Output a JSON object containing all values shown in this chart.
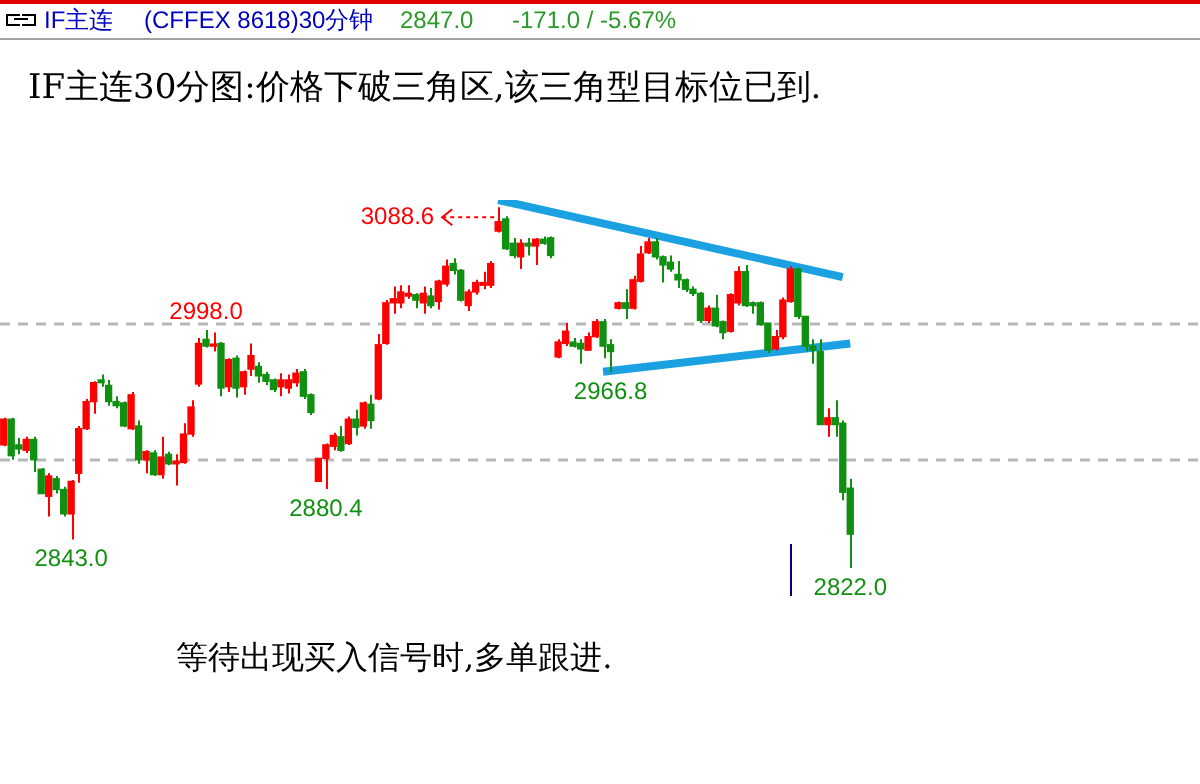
{
  "chart_data": {
    "type": "candlestick",
    "title": "IF主连30分图:价格下破三角区,该三角型目标位已到.",
    "annotations": [
      "IF主连",
      "(CFFEX 8618)30分钟",
      "2847.0",
      "-171.0 / -5.67%",
      "3088.6",
      "等待出现买入信号时,多单跟进.",
      {
        "text": "2998.0",
        "y": 2998.0
      },
      {
        "text": "2843.0",
        "y": 2843.0
      },
      {
        "text": "2880.4",
        "y": 2880.4
      },
      {
        "text": "2966.8",
        "y": 2966.8
      },
      {
        "text": "2822.0",
        "y": 2822.0
      }
    ],
    "categories": [
      null,
      null,
      null,
      null,
      null,
      null,
      null,
      null,
      null,
      null,
      null,
      null,
      null,
      null,
      null,
      null,
      null,
      null,
      null,
      null,
      null,
      null,
      null,
      null,
      null,
      null,
      null,
      null,
      null,
      null,
      null,
      null,
      null,
      null,
      null,
      null,
      null,
      null,
      null,
      null,
      null,
      null,
      null,
      null,
      null,
      null,
      null,
      null,
      null,
      null,
      null,
      null,
      null,
      null,
      null,
      null,
      null,
      null,
      null,
      null,
      null,
      null,
      null,
      null,
      null,
      null,
      null,
      null,
      null,
      null,
      null,
      null,
      null,
      null,
      null,
      null,
      null,
      null,
      null,
      null,
      null,
      null,
      null,
      null,
      null,
      null,
      null,
      null,
      null,
      null,
      null,
      null,
      null,
      null,
      null,
      null,
      null,
      null,
      null,
      null,
      null,
      null,
      null,
      null,
      null,
      null,
      null,
      null,
      null,
      null,
      null,
      null,
      null,
      null
    ],
    "ohlc": [
      [
        2913,
        2933,
        2912,
        2932
      ],
      [
        2932,
        2933,
        2902,
        2905
      ],
      [
        2913,
        2918,
        2906,
        2910
      ],
      [
        2909,
        2919,
        2907,
        2917
      ],
      [
        2917,
        2919,
        2893,
        2902
      ],
      [
        2895,
        2896,
        2877,
        2877
      ],
      [
        2875,
        2892,
        2860,
        2890
      ],
      [
        2888,
        2890,
        2877,
        2880
      ],
      [
        2880,
        2882,
        2860,
        2862
      ],
      [
        2862,
        2887,
        2843.0,
        2886
      ],
      [
        2892,
        2927,
        2885,
        2925
      ],
      [
        2925,
        2947,
        2924,
        2945
      ],
      [
        2945,
        2960,
        2936,
        2959
      ],
      [
        2961,
        2965,
        2956,
        2959
      ],
      [
        2957,
        2961,
        2942,
        2945
      ],
      [
        2945,
        2949,
        2940,
        2942
      ],
      [
        2944,
        2945,
        2926,
        2927
      ],
      [
        2925,
        2952,
        2924,
        2950
      ],
      [
        2927,
        2931,
        2899,
        2902
      ],
      [
        2902,
        2909,
        2892,
        2908
      ],
      [
        2907,
        2909,
        2890,
        2891
      ],
      [
        2891,
        2919,
        2888,
        2904
      ],
      [
        2906,
        2908,
        2898,
        2899
      ],
      [
        2899,
        2906,
        2883,
        2901
      ],
      [
        2900,
        2929,
        2899,
        2921
      ],
      [
        2921,
        2946,
        2919,
        2941
      ],
      [
        2958,
        2992,
        2956,
        2988
      ],
      [
        2991,
        2998.0,
        2985,
        2986
      ],
      [
        2986,
        2996,
        2982,
        2986
      ],
      [
        2988,
        2989,
        2949,
        2955
      ],
      [
        2956,
        2977,
        2952,
        2976
      ],
      [
        2977,
        2979,
        2948,
        2955
      ],
      [
        2956,
        2968,
        2950,
        2967
      ],
      [
        2969,
        2988,
        2964,
        2979
      ],
      [
        2971,
        2974,
        2959,
        2964
      ],
      [
        2965,
        2967,
        2957,
        2960
      ],
      [
        2961,
        2962,
        2952,
        2954
      ],
      [
        2956,
        2966,
        2949,
        2961
      ],
      [
        2955,
        2965,
        2951,
        2961
      ],
      [
        2959,
        2969,
        2956,
        2966
      ],
      [
        2967,
        2969,
        2947,
        2949
      ],
      [
        2950,
        2951,
        2935,
        2937
      ],
      [
        2886,
        2903,
        2886,
        2903
      ],
      [
        2903,
        2914,
        2880.4,
        2913
      ],
      [
        2912,
        2922,
        2909,
        2920
      ],
      [
        2919,
        2927,
        2908,
        2909
      ],
      [
        2914,
        2934,
        2913,
        2932
      ],
      [
        2932,
        2939,
        2920,
        2926
      ],
      [
        2927,
        2945,
        2925,
        2944
      ],
      [
        2943,
        2950,
        2925,
        2931
      ],
      [
        2947,
        2995,
        2946,
        2987
      ],
      [
        2988,
        3020,
        2987,
        3018
      ],
      [
        3018,
        3030,
        3010,
        3021
      ],
      [
        3018,
        3031,
        3014,
        3026
      ],
      [
        3023,
        3031,
        3021,
        3025
      ],
      [
        3024,
        3025,
        3014,
        3020
      ],
      [
        3018,
        3030,
        3010,
        3025
      ],
      [
        3023,
        3029,
        3014,
        3016
      ],
      [
        3019,
        3035,
        3013,
        3034
      ],
      [
        3032,
        3050,
        3030,
        3045
      ],
      [
        3047,
        3051,
        3039,
        3042
      ],
      [
        3042,
        3043,
        3019,
        3020
      ],
      [
        3016,
        3028,
        3012,
        3026
      ],
      [
        3026,
        3035,
        3024,
        3033
      ],
      [
        3031,
        3041,
        3028,
        3033
      ],
      [
        3031,
        3049,
        3029,
        3047
      ],
      [
        3071,
        3088.6,
        3070,
        3078
      ],
      [
        3080,
        3082,
        3057,
        3058
      ],
      [
        3062,
        3066,
        3051,
        3053
      ],
      [
        3052,
        3065,
        3043,
        3062
      ],
      [
        3062,
        3066,
        3053,
        3060
      ],
      [
        3060,
        3066,
        3046,
        3065
      ],
      [
        3065,
        3067,
        3061,
        3062
      ],
      [
        3066,
        3067,
        3051,
        3053
      ],
      [
        2978,
        2991,
        2977,
        2989
      ],
      [
        2988,
        3003,
        2986,
        2997
      ],
      [
        2989,
        2992,
        2985,
        2986
      ],
      [
        2988,
        2991,
        2973,
        2984
      ],
      [
        2983,
        2996,
        2983,
        2993
      ],
      [
        2993,
        3006,
        2992,
        3004
      ],
      [
        3004,
        3006,
        2977,
        2986
      ],
      [
        2987,
        2991,
        2966.8,
        2982
      ],
      [
        3014,
        3019,
        3013,
        3018
      ],
      [
        3018,
        3028,
        3006,
        3014
      ],
      [
        3014,
        3038,
        3013,
        3035
      ],
      [
        3034,
        3060,
        3033,
        3054
      ],
      [
        3055,
        3066,
        3054,
        3063
      ],
      [
        3063,
        3066,
        3050,
        3052
      ],
      [
        3052,
        3053,
        3033,
        3046
      ],
      [
        3048,
        3053,
        3041,
        3043
      ],
      [
        3039,
        3049,
        3029,
        3035
      ],
      [
        3035,
        3036,
        3026,
        3028
      ],
      [
        3028,
        3030,
        3023,
        3025
      ],
      [
        3025,
        3026,
        3003,
        3005
      ],
      [
        3005,
        3016,
        3003,
        3014
      ],
      [
        3014,
        3024,
        3000,
        3001
      ],
      [
        3004,
        3005,
        2991,
        2996
      ],
      [
        2997,
        3025,
        2996,
        3024
      ],
      [
        3018,
        3045,
        3016,
        3041
      ],
      [
        3041,
        3046,
        3015,
        3016
      ],
      [
        3018,
        3019,
        3010,
        3016
      ],
      [
        3018,
        3019,
        3001,
        3002
      ],
      [
        3003,
        3003,
        2981,
        2983
      ],
      [
        2984,
        2998,
        2983,
        2993
      ],
      [
        2993,
        3022,
        2991,
        3020
      ],
      [
        3019,
        3045,
        3018,
        3043
      ],
      [
        3043,
        3044,
        3006,
        3008
      ],
      [
        3008,
        3008,
        2982,
        2986
      ],
      [
        2986,
        2991,
        2973,
        2983
      ],
      [
        2982,
        2991,
        2928,
        2928
      ],
      [
        2928,
        2940,
        2919,
        2933
      ],
      [
        2933,
        2946,
        2919,
        2928
      ],
      [
        2929,
        2931,
        2872,
        2878
      ],
      [
        2881,
        2888,
        2822.0,
        2847
      ]
    ],
    "series": [
      {
        "type": "line",
        "color": "#1ba1e2",
        "values": [
          null,
          null,
          null,
          null,
          null,
          null,
          null,
          null,
          null,
          null,
          null,
          null,
          null,
          null,
          null,
          null,
          null,
          null,
          null,
          null,
          null,
          null,
          null,
          null,
          null,
          null,
          null,
          null,
          null,
          null,
          null,
          null,
          null,
          null,
          null,
          null,
          null,
          null,
          null,
          null,
          null,
          null,
          null,
          null,
          null,
          null,
          null,
          null,
          null,
          null,
          null,
          null,
          null,
          null,
          null,
          null,
          null,
          null,
          null,
          null,
          null,
          null,
          null,
          null,
          null,
          null,
          3094,
          null,
          null,
          null,
          null,
          null,
          null,
          null,
          null,
          null,
          null,
          null,
          null,
          null,
          null,
          null,
          null,
          null,
          null,
          null,
          null,
          null,
          null,
          null,
          null,
          null,
          null,
          null,
          null,
          null,
          null,
          null,
          null,
          null,
          null,
          null,
          null,
          null,
          null,
          null,
          null,
          null,
          null,
          null,
          null,
          null,
          3037,
          null
        ]
      },
      {
        "type": "line",
        "color": "#1ba1e2",
        "values": [
          null,
          null,
          null,
          null,
          null,
          null,
          null,
          null,
          null,
          null,
          null,
          null,
          null,
          null,
          null,
          null,
          null,
          null,
          null,
          null,
          null,
          null,
          null,
          null,
          null,
          null,
          null,
          null,
          null,
          null,
          null,
          null,
          null,
          null,
          null,
          null,
          null,
          null,
          null,
          null,
          null,
          null,
          null,
          null,
          null,
          null,
          null,
          null,
          null,
          null,
          null,
          null,
          null,
          null,
          null,
          null,
          null,
          null,
          null,
          null,
          null,
          null,
          null,
          null,
          null,
          null,
          null,
          null,
          null,
          null,
          null,
          null,
          null,
          null,
          null,
          null,
          null,
          null,
          null,
          null,
          2967,
          null,
          null,
          null,
          null,
          null,
          null,
          null,
          null,
          null,
          null,
          null,
          null,
          null,
          null,
          null,
          null,
          null,
          null,
          null,
          null,
          null,
          null,
          null,
          null,
          null,
          null,
          null,
          null,
          null,
          null,
          null,
          null,
          2988
        ]
      }
    ],
    "yticks": [
      {
        "value": 2902,
        "label": null
      },
      {
        "value": 3003,
        "label": null
      }
    ],
    "grid": "y",
    "legend": false
  }
}
